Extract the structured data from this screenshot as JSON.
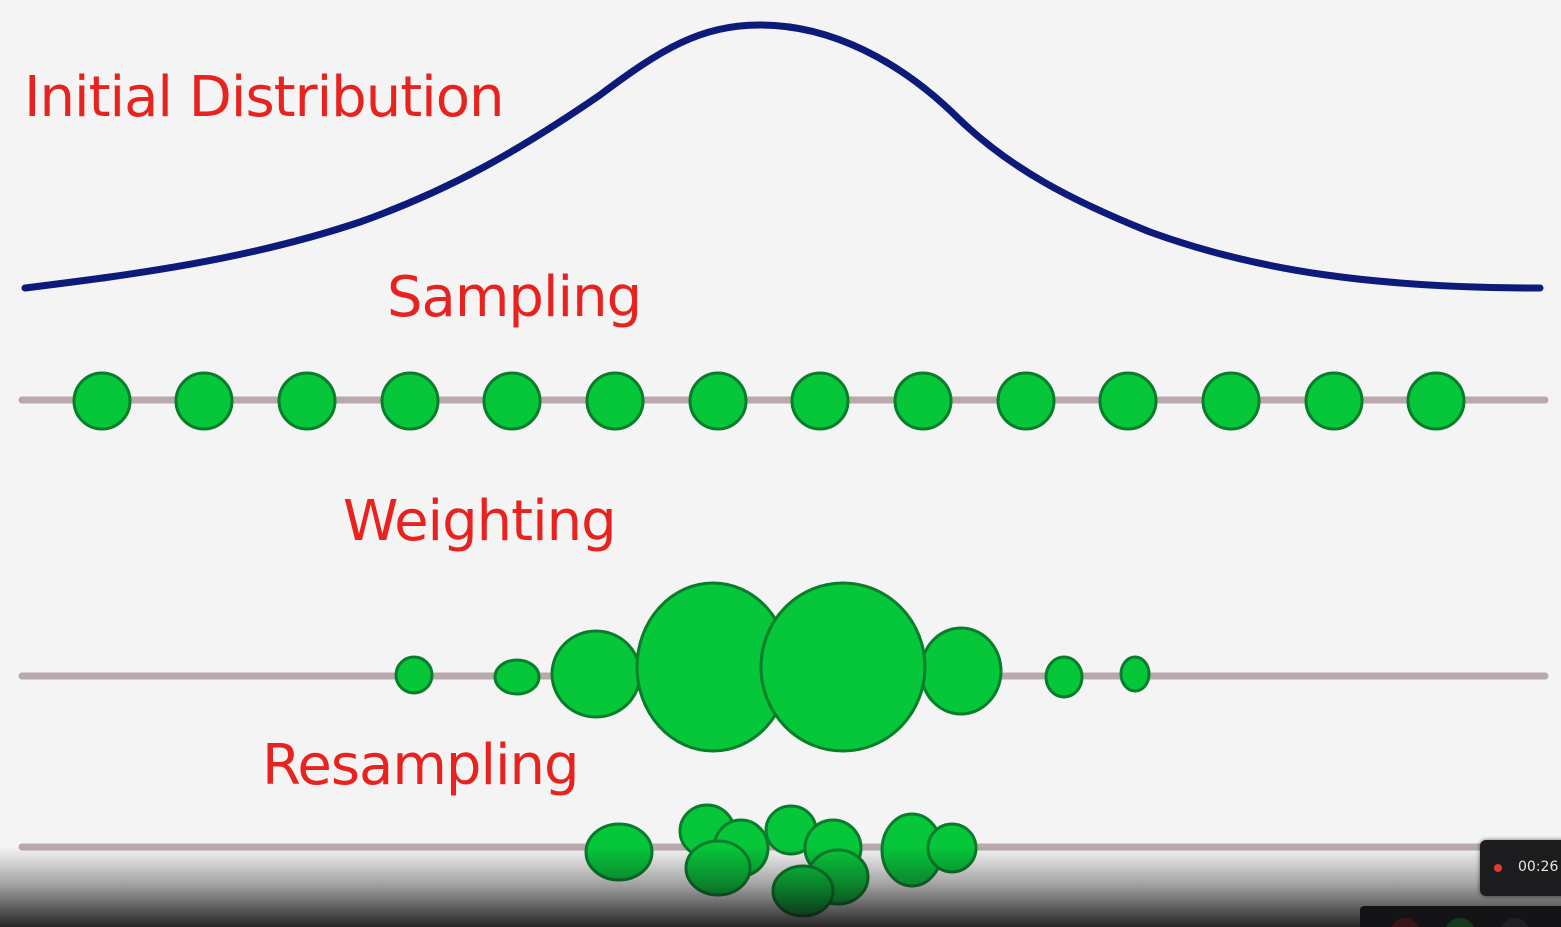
{
  "labels": {
    "initial": "Initial Distribution",
    "sampling": "Sampling",
    "weighting": "Weighting",
    "resampling": "Resampling"
  },
  "recording": {
    "time": "00:26"
  },
  "colors": {
    "label": "#e8231f",
    "curve": "#0c1a7a",
    "particle_fill": "#06c63a",
    "particle_stroke": "#0a7d2a",
    "track": "#b9a9ad",
    "rec_dot": "#e53935"
  },
  "icons": [
    "record-dot-icon"
  ]
}
